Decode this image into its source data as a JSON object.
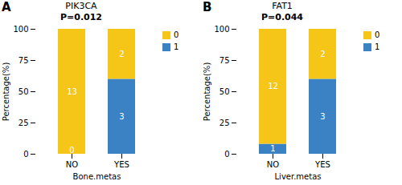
{
  "chart_data": [
    {
      "type": "bar",
      "stacked": true,
      "panel_label": "A",
      "title": "PIK3CA",
      "subtitle": "P=0.012",
      "x_label": "Bone.metas",
      "y_label": "Percentage(%)",
      "categories": [
        "NO",
        "YES"
      ],
      "series": [
        {
          "name": "1",
          "color": "#3B82C4",
          "values": [
            0,
            60
          ]
        },
        {
          "name": "0",
          "color": "#F5C518",
          "values": [
            100,
            40
          ]
        }
      ],
      "annotations": [
        {
          "text": "13",
          "x": "NO",
          "y": 50,
          "color": "white"
        },
        {
          "text": "0",
          "x": "NO",
          "y": 3,
          "color": "white"
        },
        {
          "text": "2",
          "x": "YES",
          "y": 80,
          "color": "white"
        },
        {
          "text": "3",
          "x": "YES",
          "y": 30,
          "color": "white"
        }
      ],
      "ylim": [
        0,
        100
      ],
      "yticks": [
        0,
        25,
        50,
        75,
        100
      ],
      "legend": "right"
    },
    {
      "type": "bar",
      "stacked": true,
      "panel_label": "B",
      "title": "FAT1",
      "subtitle": "P=0.044",
      "x_label": "Liver.metas",
      "y_label": "Percentage(%)",
      "categories": [
        "NO",
        "YES"
      ],
      "series": [
        {
          "name": "1",
          "color": "#3B82C4",
          "values": [
            8,
            60
          ]
        },
        {
          "name": "0",
          "color": "#F5C518",
          "values": [
            92,
            40
          ]
        }
      ],
      "annotations": [
        {
          "text": "12",
          "x": "NO",
          "y": 54,
          "color": "white"
        },
        {
          "text": "1",
          "x": "NO",
          "y": 4,
          "color": "white"
        },
        {
          "text": "2",
          "x": "YES",
          "y": 80,
          "color": "white"
        },
        {
          "text": "3",
          "x": "YES",
          "y": 30,
          "color": "white"
        }
      ],
      "ylim": [
        0,
        100
      ],
      "yticks": [
        0,
        25,
        50,
        75,
        100
      ],
      "legend": "right"
    }
  ]
}
